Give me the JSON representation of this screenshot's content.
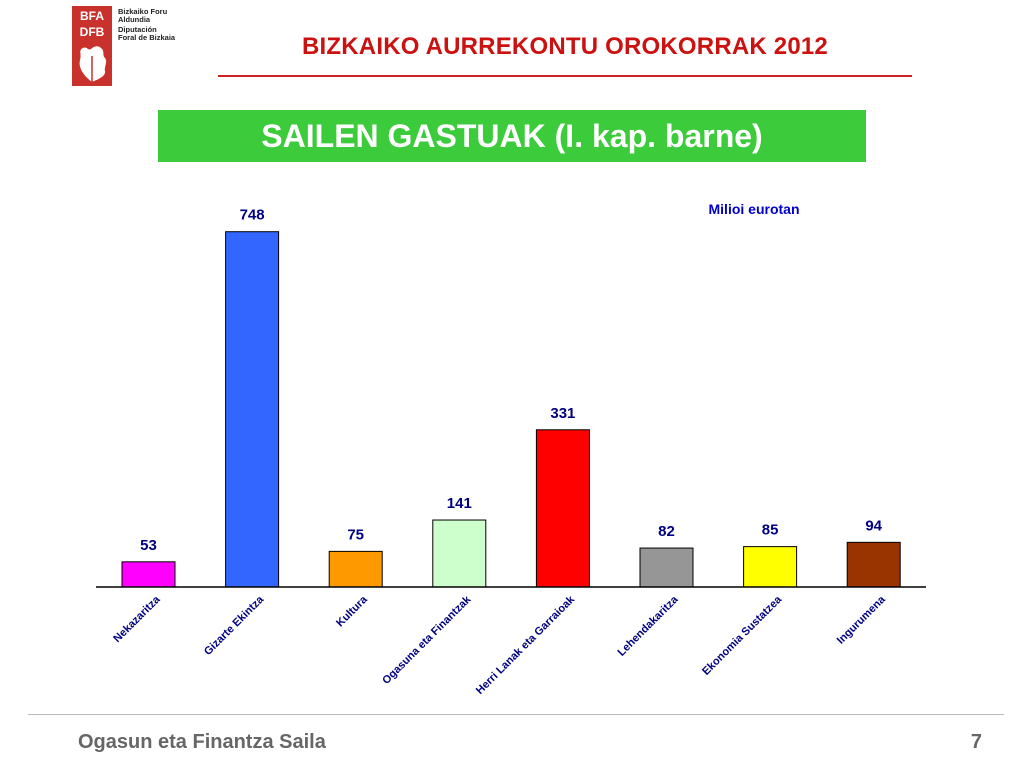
{
  "logo": {
    "code_top": "BFA",
    "code_bottom": "DFB",
    "lines": [
      "Bizkaiko Foru",
      "Aldundia",
      "Diputación",
      "Foral de Bizkaia"
    ]
  },
  "header": {
    "title": "BIZKAIKO AURREKONTU OROKORRAK 2012",
    "banner": "SAILEN GASTUAK (I. kap. barne)"
  },
  "chart_data": {
    "type": "bar",
    "unit_note": "Milioi eurotan",
    "categories": [
      "Nekazaritza",
      "Gizarte Ekintza",
      "Kultura",
      "Ogasuna eta Finantzak",
      "Herri Lanak eta Garraioak",
      "Lehendakaritza",
      "Ekonomia Sustatzea",
      "Ingurumena"
    ],
    "values": [
      53,
      748,
      75,
      141,
      331,
      82,
      85,
      94
    ],
    "colors": [
      "#ff00ff",
      "#3366ff",
      "#ff9900",
      "#ccffcc",
      "#ff0000",
      "#969696",
      "#ffff00",
      "#993300"
    ],
    "ylim": [
      0,
      800
    ],
    "grid": false,
    "title": "",
    "xlabel": "",
    "ylabel": ""
  },
  "footer": {
    "text": "Ogasun eta Finantza Saila",
    "page": "7"
  }
}
